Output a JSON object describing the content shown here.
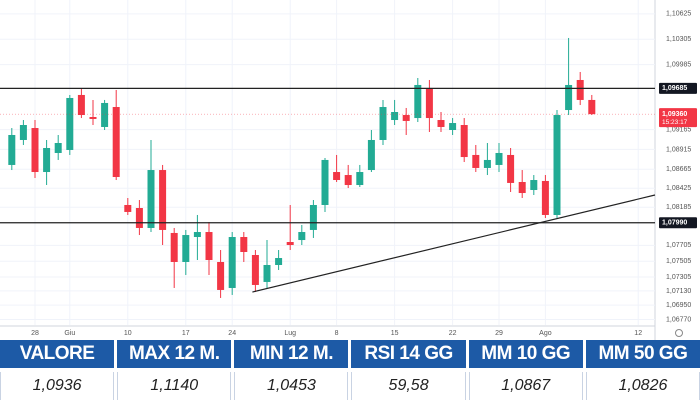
{
  "chart_data": {
    "type": "candlestick",
    "categories": [
      null,
      null,
      "28",
      null,
      null,
      "Giu",
      null,
      null,
      null,
      null,
      "10",
      null,
      null,
      null,
      null,
      "17",
      null,
      null,
      null,
      "24",
      null,
      null,
      null,
      null,
      "Lug",
      null,
      null,
      null,
      "8",
      null,
      null,
      null,
      null,
      "15",
      null,
      null,
      null,
      null,
      "22",
      null,
      null,
      null,
      "29",
      null,
      null,
      null,
      "Ago",
      null,
      null,
      null,
      null,
      null,
      null,
      null,
      "12"
    ],
    "open": [
      1.08719,
      1.09034,
      1.09185,
      1.0863,
      1.0887,
      1.08908,
      1.09602,
      1.09324,
      1.09198,
      1.0945,
      1.08214,
      1.08176,
      1.07924,
      1.08655,
      1.07861,
      1.07495,
      1.0781,
      1.07873,
      1.07495,
      1.07167,
      1.0781,
      1.07583,
      1.07243,
      1.07457,
      1.07747,
      1.07772,
      1.07899,
      1.08214,
      1.0863,
      1.08592,
      1.08466,
      1.08655,
      1.09034,
      1.09286,
      1.09349,
      1.09311,
      1.0969,
      1.09286,
      1.0916,
      1.09223,
      1.08845,
      1.08681,
      1.08719,
      1.08845,
      1.08504,
      1.08403,
      1.08517,
      1.08088,
      1.09412,
      1.09791,
      1.09539,
      null,
      null,
      null,
      null
    ],
    "high": [
      1.09185,
      1.09286,
      1.09286,
      1.09034,
      1.09097,
      1.09602,
      1.0969,
      1.09539,
      1.09539,
      1.09665,
      1.08302,
      1.08277,
      1.09034,
      1.08719,
      1.07924,
      1.07899,
      1.08088,
      1.07999,
      1.07646,
      1.07873,
      1.07873,
      1.07646,
      1.07772,
      1.07646,
      1.08214,
      1.07962,
      1.08277,
      1.08807,
      1.08845,
      1.08719,
      1.08719,
      1.0916,
      1.09539,
      1.09539,
      1.09438,
      1.09816,
      1.09791,
      1.09387,
      1.09311,
      1.09311,
      1.08971,
      1.08996,
      1.08996,
      1.08933,
      1.08655,
      1.08592,
      1.08592,
      1.09412,
      1.10321,
      1.09892,
      1.09602,
      null,
      null,
      null,
      null
    ],
    "low": [
      1.08655,
      1.08971,
      1.08555,
      1.08466,
      1.08782,
      1.08845,
      1.09311,
      1.09223,
      1.0916,
      1.08529,
      1.08088,
      1.07835,
      1.07873,
      1.07709,
      1.07167,
      1.07331,
      1.0752,
      1.07331,
      1.07041,
      1.07079,
      1.07495,
      1.07116,
      1.07167,
      1.07394,
      1.07646,
      1.07709,
      1.07798,
      1.08126,
      1.08504,
      1.08428,
      1.08441,
      1.0863,
      1.08971,
      1.09223,
      1.09097,
      1.09261,
      1.09135,
      1.09135,
      1.09097,
      1.08756,
      1.0863,
      1.08592,
      1.0863,
      1.08378,
      1.08302,
      1.0834,
      1.0805,
      1.0805,
      1.09349,
      1.09475,
      1.09349,
      null,
      null,
      null,
      null
    ],
    "close": [
      1.09097,
      1.09223,
      1.0863,
      1.08933,
      1.08996,
      1.09564,
      1.09349,
      1.09299,
      1.09501,
      1.08567,
      1.08126,
      1.07924,
      1.08655,
      1.07899,
      1.07495,
      1.07835,
      1.07873,
      1.0752,
      1.07142,
      1.0781,
      1.07621,
      1.07205,
      1.07457,
      1.07545,
      1.07709,
      1.07873,
      1.08214,
      1.08782,
      1.08529,
      1.08466,
      1.0863,
      1.09034,
      1.0945,
      1.09387,
      1.09274,
      1.09728,
      1.09311,
      1.09198,
      1.09248,
      1.08819,
      1.08681,
      1.08782,
      1.0887,
      1.08492,
      1.08365,
      1.08529,
      1.08088,
      1.09349,
      1.09728,
      1.09539,
      1.0936,
      null,
      null,
      null,
      null
    ],
    "colors": {
      "up": "#22ab94",
      "down": "#f23645"
    },
    "ylim": [
      1.067,
      1.108
    ],
    "yticks": [
      {
        "value": 1.10625,
        "label": "1,10625"
      },
      {
        "value": 1.10305,
        "label": "1,10305"
      },
      {
        "value": 1.09985,
        "label": "1,09985"
      },
      {
        "value": 1.09165,
        "label": "1,09165"
      },
      {
        "value": 1.08915,
        "label": "1,08915"
      },
      {
        "value": 1.08665,
        "label": "1,08665"
      },
      {
        "value": 1.08425,
        "label": "1,08425"
      },
      {
        "value": 1.08185,
        "label": "1,08185"
      },
      {
        "value": 1.07705,
        "label": "1,07705"
      },
      {
        "value": 1.07505,
        "label": "1,07505"
      },
      {
        "value": 1.07305,
        "label": "1,07305"
      },
      {
        "value": 1.0713,
        "label": "1,07130"
      },
      {
        "value": 1.0695,
        "label": "1,06950"
      },
      {
        "value": 1.0677,
        "label": "1,06770"
      }
    ],
    "grid": true,
    "levels": [
      {
        "value": 1.09685,
        "label": "1,09685"
      },
      {
        "value": 1.0799,
        "label": "1,07990"
      }
    ],
    "last_price": {
      "value": 1.0936,
      "label": "1,09360",
      "time": "15:23:17"
    },
    "trendline": {
      "values": [
        1.07116,
        1.0834
      ]
    }
  },
  "table": {
    "header": [
      "VALORE",
      "MAX 12 M.",
      "MIN 12 M.",
      "RSI 14 GG",
      "MM 10 GG",
      "MM 50 GG"
    ],
    "rows": [
      [
        "1,0936",
        "1,1140",
        "1,0453",
        "59,58",
        "1,0867",
        "1,0826"
      ]
    ]
  }
}
